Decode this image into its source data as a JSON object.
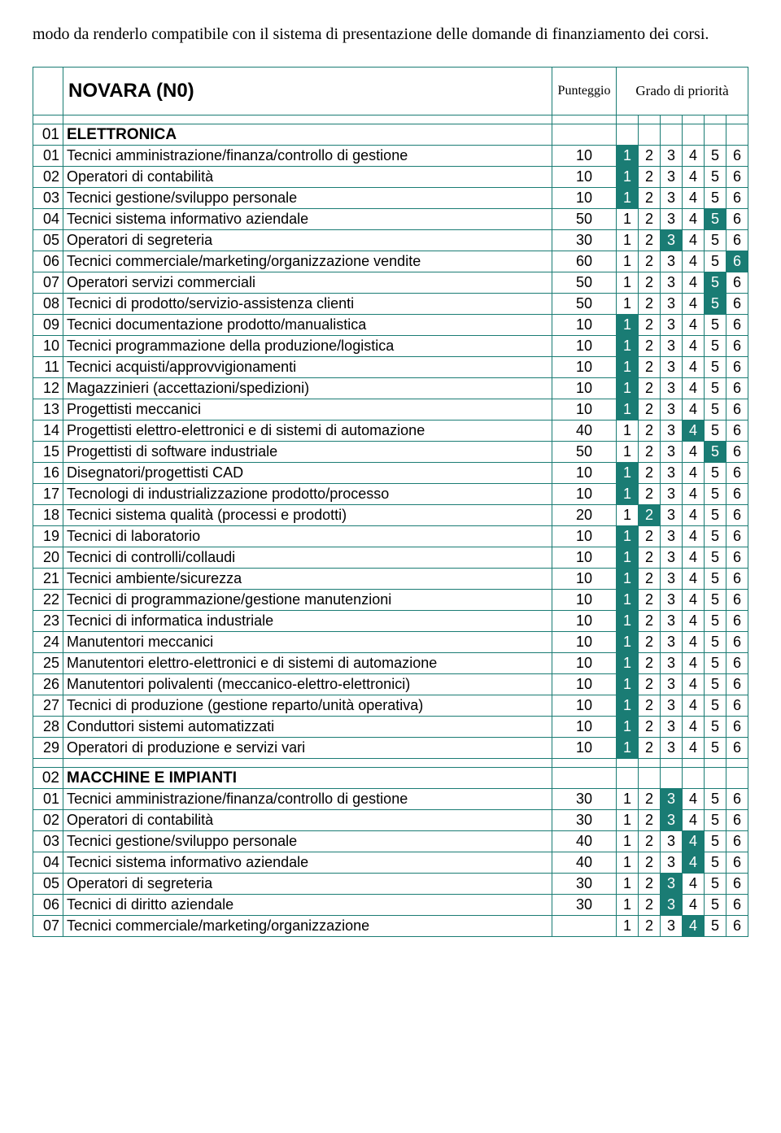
{
  "preamble": "modo da renderlo compatibile con il sistema di presentazione delle domande di finanziamento dei corsi.",
  "table_title": "NOVARA (N0)",
  "score_header": "Punteggio",
  "grade_header": "Grado di priorità",
  "colors": {
    "border": "#1a7c74",
    "highlight_bg": "#1a7c74",
    "highlight_fg": "#ffffff",
    "page_bg": "#ffffff"
  },
  "sections": [
    {
      "code": "01",
      "title": "ELETTRONICA",
      "title_bold": true,
      "rows": [
        {
          "n": "01",
          "d": "Tecnici amministrazione/finanza/controllo di gestione",
          "s": "10",
          "hl": 1
        },
        {
          "n": "02",
          "d": "Operatori di contabilità",
          "s": "10",
          "hl": 1
        },
        {
          "n": "03",
          "d": "Tecnici gestione/sviluppo personale",
          "s": "10",
          "hl": 1
        },
        {
          "n": "04",
          "d": "Tecnici sistema informativo aziendale",
          "s": "50",
          "hl": 5
        },
        {
          "n": "05",
          "d": "Operatori di segreteria",
          "s": "30",
          "hl": 3
        },
        {
          "n": "06",
          "d": "Tecnici commerciale/marketing/organizzazione vendite",
          "s": "60",
          "hl": 6
        },
        {
          "n": "07",
          "d": "Operatori servizi commerciali",
          "s": "50",
          "hl": 5
        },
        {
          "n": "08",
          "d": "Tecnici di prodotto/servizio-assistenza clienti",
          "s": "50",
          "hl": 5
        },
        {
          "n": "09",
          "d": "Tecnici documentazione prodotto/manualistica",
          "s": "10",
          "hl": 1
        },
        {
          "n": "10",
          "d": "Tecnici programmazione della produzione/logistica",
          "s": "10",
          "hl": 1
        },
        {
          "n": "11",
          "d": "Tecnici acquisti/approvvigionamenti",
          "s": "10",
          "hl": 1
        },
        {
          "n": "12",
          "d": "Magazzinieri (accettazioni/spedizioni)",
          "s": "10",
          "hl": 1
        },
        {
          "n": "13",
          "d": "Progettisti meccanici",
          "s": "10",
          "hl": 1
        },
        {
          "n": "14",
          "d": "Progettisti elettro-elettronici e di sistemi di automazione",
          "s": "40",
          "hl": 4
        },
        {
          "n": "15",
          "d": "Progettisti di software industriale",
          "s": "50",
          "hl": 5
        },
        {
          "n": "16",
          "d": "Disegnatori/progettisti CAD",
          "s": "10",
          "hl": 1
        },
        {
          "n": "17",
          "d": "Tecnologi di industrializzazione prodotto/processo",
          "s": "10",
          "hl": 1
        },
        {
          "n": "18",
          "d": "Tecnici sistema qualità (processi e prodotti)",
          "s": "20",
          "hl": 2
        },
        {
          "n": "19",
          "d": "Tecnici di laboratorio",
          "s": "10",
          "hl": 1
        },
        {
          "n": "20",
          "d": "Tecnici di controlli/collaudi",
          "s": "10",
          "hl": 1
        },
        {
          "n": "21",
          "d": "Tecnici ambiente/sicurezza",
          "s": "10",
          "hl": 1
        },
        {
          "n": "22",
          "d": "Tecnici di programmazione/gestione manutenzioni",
          "s": "10",
          "hl": 1
        },
        {
          "n": "23",
          "d": "Tecnici di informatica industriale",
          "s": "10",
          "hl": 1
        },
        {
          "n": "24",
          "d": "Manutentori meccanici",
          "s": "10",
          "hl": 1
        },
        {
          "n": "25",
          "d": "Manutentori elettro-elettronici e di sistemi di automazione",
          "s": "10",
          "hl": 1
        },
        {
          "n": "26",
          "d": " Manutentori polivalenti (meccanico-elettro-elettronici)",
          "s": "10",
          "hl": 1
        },
        {
          "n": "27",
          "d": "Tecnici di produzione (gestione reparto/unità operativa)",
          "s": "10",
          "hl": 1
        },
        {
          "n": "28",
          "d": "Conduttori sistemi automatizzati",
          "s": "10",
          "hl": 1
        },
        {
          "n": "29",
          "d": "Operatori di produzione e servizi vari",
          "s": "10",
          "hl": 1
        }
      ]
    },
    {
      "code": "02",
      "title": "MACCHINE  E IMPIANTI",
      "title_bold": true,
      "rows": [
        {
          "n": "01",
          "d": "Tecnici amministrazione/finanza/controllo di gestione",
          "s": "30",
          "hl": 3
        },
        {
          "n": "02",
          "d": "Operatori di contabilità",
          "s": "30",
          "hl": 3
        },
        {
          "n": "03",
          "d": "Tecnici gestione/sviluppo personale",
          "s": "40",
          "hl": 4
        },
        {
          "n": "04",
          "d": "Tecnici sistema informativo aziendale",
          "s": "40",
          "hl": 4
        },
        {
          "n": "05",
          "d": "Operatori di segreteria",
          "s": "30",
          "hl": 3
        },
        {
          "n": "06",
          "d": "Tecnici di diritto aziendale",
          "s": "30",
          "hl": 3
        },
        {
          "n": "07",
          "d": "Tecnici commerciale/marketing/organizzazione",
          "s": "",
          "hl": 4
        }
      ]
    }
  ],
  "grades": [
    "1",
    "2",
    "3",
    "4",
    "5",
    "6"
  ]
}
